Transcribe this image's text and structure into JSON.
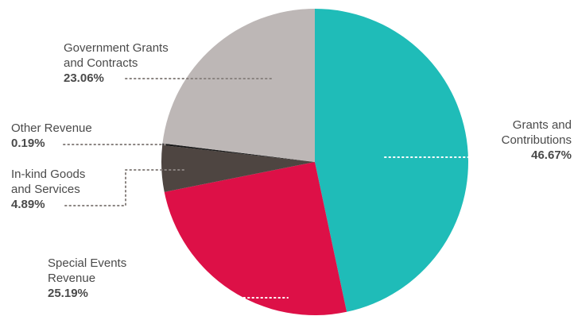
{
  "chart_data": {
    "type": "pie",
    "title": "",
    "slices": [
      {
        "name_lines": [
          "Grants and",
          "Contributions"
        ],
        "value": 46.67,
        "label": "46.67%",
        "color": "#1fbcb8"
      },
      {
        "name_lines": [
          "Special Events",
          "Revenue"
        ],
        "value": 25.19,
        "label": "25.19%",
        "color": "#dd1047"
      },
      {
        "name_lines": [
          "In-kind Goods",
          "and Services"
        ],
        "value": 4.89,
        "label": "4.89%",
        "color": "#4e4541"
      },
      {
        "name_lines": [
          "Other Revenue"
        ],
        "value": 0.19,
        "label": "0.19%",
        "color": "#1a1a1a"
      },
      {
        "name_lines": [
          "Government Grants",
          "and Contracts"
        ],
        "value": 23.06,
        "label": "23.06%",
        "color": "#bdb7b6"
      }
    ],
    "start_angle": "12 o'clock",
    "direction": "clockwise",
    "label_color": "#4a4a4a",
    "leader_style": "dotted"
  }
}
